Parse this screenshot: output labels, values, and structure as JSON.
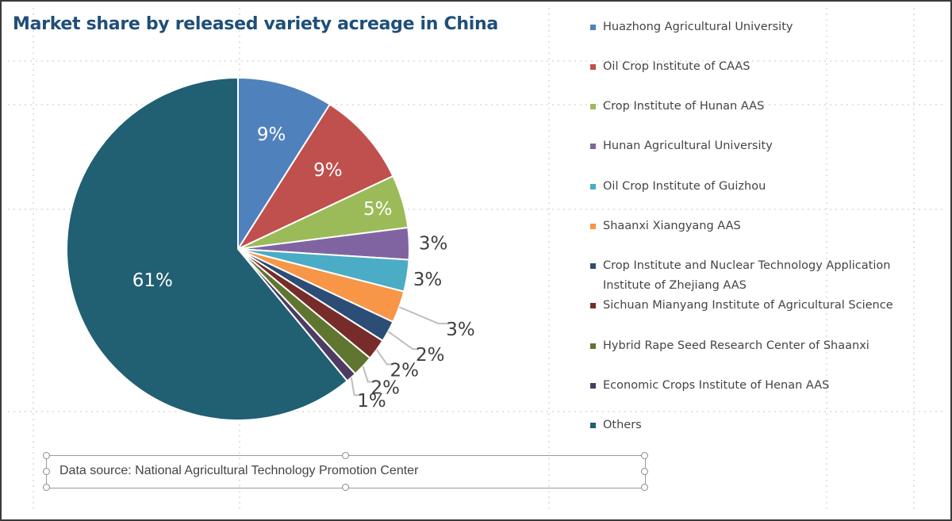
{
  "chart_data": {
    "type": "pie",
    "title": "Market share by released variety acreage in China",
    "source": "Data source: National Agricultural Technology Promotion Center",
    "legend_position": "right",
    "slices": [
      {
        "name": "Huazhong Agricultural University",
        "value": 9,
        "label": "9%",
        "color": "#4f81bd"
      },
      {
        "name": "Oil Crop Institute of CAAS",
        "value": 9,
        "label": "9%",
        "color": "#c0504d"
      },
      {
        "name": "Crop Institute of Hunan AAS",
        "value": 5,
        "label": "5%",
        "color": "#9bbb59"
      },
      {
        "name": "Hunan Agricultural University",
        "value": 3,
        "label": "3%",
        "color": "#8064a2"
      },
      {
        "name": "Oil Crop Institute of Guizhou",
        "value": 3,
        "label": "3%",
        "color": "#4bacc6"
      },
      {
        "name": "Shaanxi Xiangyang AAS",
        "value": 3,
        "label": "3%",
        "color": "#f79646"
      },
      {
        "name": "Crop Institute and Nuclear Technology Application Institute of Zhejiang AAS",
        "value": 2,
        "label": "2%",
        "color": "#2c4d75"
      },
      {
        "name": "Sichuan Mianyang Institute of Agricultural Science",
        "value": 2,
        "label": "2%",
        "color": "#772c2a"
      },
      {
        "name": "Hybrid Rape Seed Research Center of Shaanxi",
        "value": 2,
        "label": "2%",
        "color": "#5f7530"
      },
      {
        "name": "Economic Crops Institute of Henan AAS",
        "value": 1,
        "label": "1%",
        "color": "#4d3b62"
      },
      {
        "name": "Others",
        "value": 61,
        "label": "61%",
        "color": "#215f73"
      }
    ]
  }
}
